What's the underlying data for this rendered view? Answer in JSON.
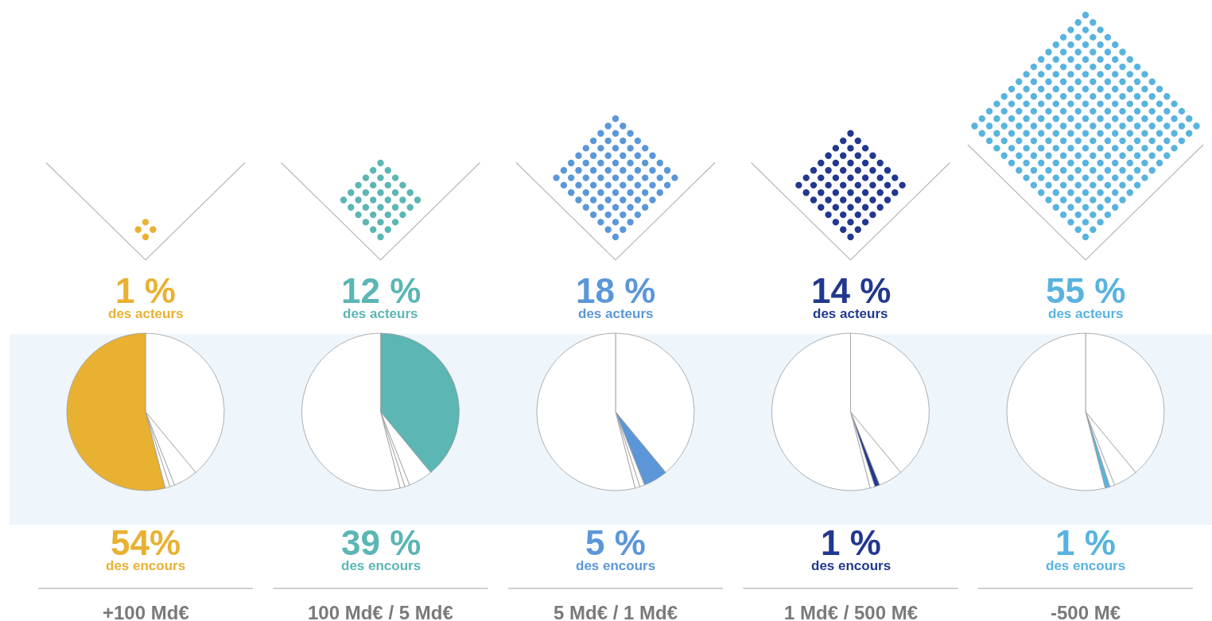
{
  "chart_data": [
    {
      "type": "pie",
      "title": "1 %",
      "subtitle": "des acteurs",
      "categories": [
        null,
        null,
        null,
        null,
        null
      ],
      "values": [
        39,
        5,
        1,
        1,
        54
      ],
      "colors": [
        "#ffffff",
        "#ffffff",
        "#ffffff",
        "#ffffff",
        "#e9b132"
      ],
      "annotations": [
        "54%",
        "des encours",
        "+100 Md€"
      ]
    },
    {
      "type": "pie",
      "title": "12 %",
      "subtitle": "des acteurs",
      "categories": [
        null,
        null,
        null,
        null,
        null
      ],
      "values": [
        39,
        5,
        1,
        1,
        54
      ],
      "colors": [
        "#5bb6b4",
        "#ffffff",
        "#ffffff",
        "#ffffff",
        "#ffffff"
      ],
      "annotations": [
        "39 %",
        "des encours",
        "100 Md€ / 5 Md€"
      ]
    },
    {
      "type": "pie",
      "title": "18 %",
      "subtitle": "des acteurs",
      "categories": [
        null,
        null,
        null,
        null,
        null
      ],
      "values": [
        39,
        5,
        1,
        1,
        54
      ],
      "colors": [
        "#ffffff",
        "#5b97d8",
        "#ffffff",
        "#ffffff",
        "#ffffff"
      ],
      "annotations": [
        "5 %",
        "des encours",
        "5 Md€ / 1 Md€"
      ]
    },
    {
      "type": "pie",
      "title": "14 %",
      "subtitle": "des acteurs",
      "categories": [
        null,
        null,
        null,
        null,
        null
      ],
      "values": [
        39,
        5,
        1,
        1,
        54
      ],
      "colors": [
        "#ffffff",
        "#ffffff",
        "#22388f",
        "#ffffff",
        "#ffffff"
      ],
      "annotations": [
        "1 %",
        "des encours",
        "1 Md€ / 500 M€"
      ]
    },
    {
      "type": "pie",
      "title": "55 %",
      "subtitle": "des acteurs",
      "categories": [
        null,
        null,
        null,
        null,
        null
      ],
      "values": [
        39,
        5,
        1,
        1,
        54
      ],
      "colors": [
        "#ffffff",
        "#ffffff",
        "#ffffff",
        "#59b3df",
        "#ffffff"
      ],
      "annotations": [
        "1 %",
        "des encours",
        "-500 M€"
      ]
    }
  ]
}
